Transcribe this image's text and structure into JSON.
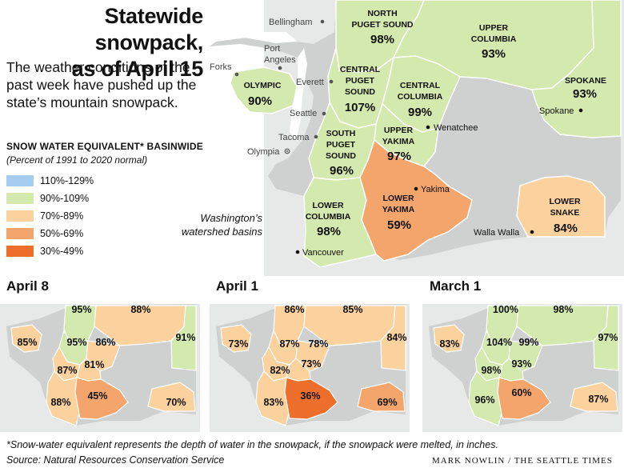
{
  "title_line1": "Statewide snowpack,",
  "title_line2": "as of April 15",
  "intro": "The weather conditions of the past week have pushed up the state’s mountain snowpack.",
  "legend": {
    "title": "SNOW WATER EQUIVALENT* BASINWIDE",
    "subtitle": "(Percent of 1991 to 2020 normal)",
    "items": [
      {
        "label": "110%-129%",
        "color": "#a6cdef"
      },
      {
        "label": "90%-109%",
        "color": "#d4e9ae"
      },
      {
        "label": "70%-89%",
        "color": "#fbd29d"
      },
      {
        "label": "50%-69%",
        "color": "#f4a56b"
      },
      {
        "label": "30%-49%",
        "color": "#ee6f2c"
      }
    ]
  },
  "colors": {
    "state_bg": "#cfd1d1",
    "outside": "#e7e8e8",
    "border": "#ffffff"
  },
  "main_map": {
    "note_line1": "Washington’s",
    "note_line2": "watershed basins",
    "basins": [
      {
        "name_lines": [
          "NORTH",
          "PUGET SOUND"
        ],
        "pct": "98%"
      },
      {
        "name_lines": [
          "UPPER",
          "COLUMBIA"
        ],
        "pct": "93%"
      },
      {
        "name_lines": [
          "OLYMPIC"
        ],
        "pct": "90%"
      },
      {
        "name_lines": [
          "CENTRAL",
          "PUGET",
          "SOUND"
        ],
        "pct": "107%"
      },
      {
        "name_lines": [
          "CENTRAL",
          "COLUMBIA"
        ],
        "pct": "99%"
      },
      {
        "name_lines": [
          "SPOKANE"
        ],
        "pct": "93%"
      },
      {
        "name_lines": [
          "SOUTH",
          "PUGET",
          "SOUND"
        ],
        "pct": "96%"
      },
      {
        "name_lines": [
          "UPPER",
          "YAKIMA"
        ],
        "pct": "97%"
      },
      {
        "name_lines": [
          "LOWER",
          "COLUMBIA"
        ],
        "pct": "98%"
      },
      {
        "name_lines": [
          "LOWER",
          "YAKIMA"
        ],
        "pct": "59%"
      },
      {
        "name_lines": [
          "LOWER",
          "SNAKE"
        ],
        "pct": "84%"
      }
    ],
    "cities": [
      "Bellingham",
      "Port",
      "Angeles",
      "Forks",
      "Everett",
      "Seattle",
      "Tacoma",
      "Olympia",
      "Wenatchee",
      "Spokane",
      "Yakima",
      "Walla Walla",
      "Vancouver"
    ]
  },
  "mini_maps": [
    {
      "title": "April 8",
      "values": [
        "95%",
        "88%",
        "85%",
        "95%",
        "86%",
        "91%",
        "87%",
        "81%",
        "88%",
        "45%",
        "70%"
      ]
    },
    {
      "title": "April 1",
      "values": [
        "86%",
        "85%",
        "73%",
        "87%",
        "78%",
        "84%",
        "82%",
        "73%",
        "83%",
        "36%",
        "69%"
      ]
    },
    {
      "title": "March 1",
      "values": [
        "100%",
        "98%",
        "83%",
        "104%",
        "99%",
        "97%",
        "98%",
        "93%",
        "96%",
        "60%",
        "87%"
      ]
    }
  ],
  "footnote": "*Snow-water equivalent represents the depth of water in the snowpack, if the snowpack were melted, in inches.",
  "source": "Source: Natural Resources Conservation Service",
  "credit": "MARK NOWLIN / THE SEATTLE TIMES"
}
